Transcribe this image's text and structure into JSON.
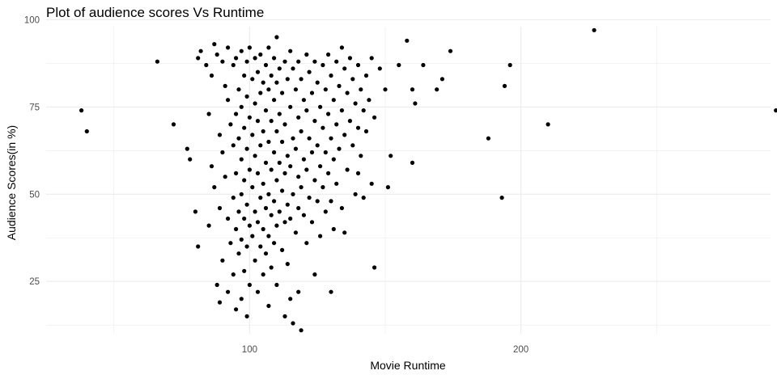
{
  "chart_data": {
    "type": "scatter",
    "title": "Plot of audience scores Vs Runtime",
    "xlabel": "Movie Runtime",
    "ylabel": "Audience Scores(in %)",
    "xlim": [
      25,
      292
    ],
    "ylim": [
      10,
      98
    ],
    "x_ticks": [
      100,
      200
    ],
    "x_tick_labels": [
      "100",
      "200"
    ],
    "y_ticks": [
      25,
      50,
      75,
      100
    ],
    "y_tick_labels": [
      "25",
      "50",
      "75",
      "100"
    ],
    "grid": true,
    "legend": "none",
    "point_color": "#000000",
    "grid_color": "#ebebeb",
    "points": [
      [
        38,
        74
      ],
      [
        40,
        68
      ],
      [
        66,
        88
      ],
      [
        72,
        70
      ],
      [
        77,
        63
      ],
      [
        78,
        60
      ],
      [
        80,
        45
      ],
      [
        81,
        89
      ],
      [
        81,
        35
      ],
      [
        82,
        91
      ],
      [
        84,
        87
      ],
      [
        85,
        73
      ],
      [
        85,
        41
      ],
      [
        86,
        84
      ],
      [
        86,
        58
      ],
      [
        87,
        93
      ],
      [
        87,
        52
      ],
      [
        88,
        90
      ],
      [
        88,
        24
      ],
      [
        89,
        67
      ],
      [
        89,
        46
      ],
      [
        89,
        19
      ],
      [
        90,
        88
      ],
      [
        90,
        62
      ],
      [
        90,
        31
      ],
      [
        91,
        81
      ],
      [
        91,
        55
      ],
      [
        92,
        92
      ],
      [
        92,
        77
      ],
      [
        92,
        43
      ],
      [
        92,
        22
      ],
      [
        93,
        70
      ],
      [
        93,
        36
      ],
      [
        94,
        87
      ],
      [
        94,
        64
      ],
      [
        94,
        49
      ],
      [
        94,
        27
      ],
      [
        95,
        89
      ],
      [
        95,
        73
      ],
      [
        95,
        56
      ],
      [
        95,
        40
      ],
      [
        95,
        17
      ],
      [
        96,
        80
      ],
      [
        96,
        66
      ],
      [
        96,
        45
      ],
      [
        96,
        33
      ],
      [
        97,
        91
      ],
      [
        97,
        75
      ],
      [
        97,
        60
      ],
      [
        97,
        50
      ],
      [
        97,
        37
      ],
      [
        97,
        20
      ],
      [
        98,
        84
      ],
      [
        98,
        69
      ],
      [
        98,
        54
      ],
      [
        98,
        43
      ],
      [
        98,
        28
      ],
      [
        99,
        88
      ],
      [
        99,
        78
      ],
      [
        99,
        63
      ],
      [
        99,
        47
      ],
      [
        99,
        35
      ],
      [
        99,
        15
      ],
      [
        100,
        92
      ],
      [
        100,
        72
      ],
      [
        100,
        57
      ],
      [
        100,
        41
      ],
      [
        100,
        24
      ],
      [
        101,
        83
      ],
      [
        101,
        67
      ],
      [
        101,
        52
      ],
      [
        101,
        38
      ],
      [
        102,
        89
      ],
      [
        102,
        76
      ],
      [
        102,
        61
      ],
      [
        102,
        45
      ],
      [
        102,
        31
      ],
      [
        103,
        85
      ],
      [
        103,
        71
      ],
      [
        103,
        56
      ],
      [
        103,
        42
      ],
      [
        103,
        22
      ],
      [
        104,
        90
      ],
      [
        104,
        79
      ],
      [
        104,
        64
      ],
      [
        104,
        49
      ],
      [
        104,
        35
      ],
      [
        105,
        82
      ],
      [
        105,
        68
      ],
      [
        105,
        53
      ],
      [
        105,
        40
      ],
      [
        105,
        27
      ],
      [
        106,
        87
      ],
      [
        106,
        74
      ],
      [
        106,
        59
      ],
      [
        106,
        46
      ],
      [
        106,
        33
      ],
      [
        107,
        92
      ],
      [
        107,
        80
      ],
      [
        107,
        65
      ],
      [
        107,
        50
      ],
      [
        107,
        38
      ],
      [
        107,
        18
      ],
      [
        108,
        84
      ],
      [
        108,
        71
      ],
      [
        108,
        57
      ],
      [
        108,
        44
      ],
      [
        108,
        29
      ],
      [
        109,
        89
      ],
      [
        109,
        77
      ],
      [
        109,
        62
      ],
      [
        109,
        48
      ],
      [
        109,
        36
      ],
      [
        110,
        95
      ],
      [
        110,
        82
      ],
      [
        110,
        68
      ],
      [
        110,
        54
      ],
      [
        110,
        41
      ],
      [
        110,
        24
      ],
      [
        111,
        86
      ],
      [
        111,
        73
      ],
      [
        111,
        59
      ],
      [
        111,
        45
      ],
      [
        112,
        79
      ],
      [
        112,
        65
      ],
      [
        112,
        51
      ],
      [
        112,
        34
      ],
      [
        113,
        88
      ],
      [
        113,
        70
      ],
      [
        113,
        56
      ],
      [
        113,
        42
      ],
      [
        113,
        15
      ],
      [
        114,
        83
      ],
      [
        114,
        61
      ],
      [
        114,
        47
      ],
      [
        114,
        30
      ],
      [
        115,
        91
      ],
      [
        115,
        75
      ],
      [
        115,
        58
      ],
      [
        115,
        43
      ],
      [
        115,
        20
      ],
      [
        116,
        86
      ],
      [
        116,
        66
      ],
      [
        116,
        50
      ],
      [
        116,
        13
      ],
      [
        117,
        80
      ],
      [
        117,
        63
      ],
      [
        117,
        39
      ],
      [
        118,
        88
      ],
      [
        118,
        72
      ],
      [
        118,
        55
      ],
      [
        118,
        46
      ],
      [
        118,
        22
      ],
      [
        119,
        83
      ],
      [
        119,
        68
      ],
      [
        119,
        52
      ],
      [
        119,
        11
      ],
      [
        120,
        77
      ],
      [
        120,
        60
      ],
      [
        120,
        44
      ],
      [
        121,
        90
      ],
      [
        121,
        74
      ],
      [
        121,
        57
      ],
      [
        121,
        36
      ],
      [
        122,
        85
      ],
      [
        122,
        66
      ],
      [
        122,
        49
      ],
      [
        123,
        79
      ],
      [
        123,
        62
      ],
      [
        123,
        42
      ],
      [
        124,
        88
      ],
      [
        124,
        71
      ],
      [
        124,
        54
      ],
      [
        124,
        27
      ],
      [
        125,
        82
      ],
      [
        125,
        64
      ],
      [
        125,
        48
      ],
      [
        126,
        75
      ],
      [
        126,
        58
      ],
      [
        126,
        38
      ],
      [
        127,
        87
      ],
      [
        127,
        69
      ],
      [
        127,
        52
      ],
      [
        128,
        80
      ],
      [
        128,
        62
      ],
      [
        128,
        45
      ],
      [
        129,
        90
      ],
      [
        129,
        73
      ],
      [
        129,
        56
      ],
      [
        130,
        84
      ],
      [
        130,
        66
      ],
      [
        130,
        48
      ],
      [
        130,
        22
      ],
      [
        131,
        77
      ],
      [
        131,
        60
      ],
      [
        131,
        40
      ],
      [
        132,
        88
      ],
      [
        132,
        70
      ],
      [
        132,
        53
      ],
      [
        133,
        81
      ],
      [
        133,
        63
      ],
      [
        134,
        92
      ],
      [
        134,
        74
      ],
      [
        134,
        46
      ],
      [
        135,
        86
      ],
      [
        135,
        67
      ],
      [
        135,
        39
      ],
      [
        136,
        79
      ],
      [
        136,
        57
      ],
      [
        137,
        89
      ],
      [
        137,
        71
      ],
      [
        138,
        83
      ],
      [
        138,
        64
      ],
      [
        139,
        76
      ],
      [
        139,
        50
      ],
      [
        140,
        87
      ],
      [
        140,
        69
      ],
      [
        140,
        56
      ],
      [
        141,
        80
      ],
      [
        141,
        61
      ],
      [
        142,
        74
      ],
      [
        142,
        49
      ],
      [
        143,
        84
      ],
      [
        143,
        68
      ],
      [
        144,
        77
      ],
      [
        145,
        89
      ],
      [
        145,
        53
      ],
      [
        146,
        72
      ],
      [
        146,
        29
      ],
      [
        148,
        86
      ],
      [
        150,
        80
      ],
      [
        151,
        52
      ],
      [
        152,
        61
      ],
      [
        155,
        87
      ],
      [
        158,
        94
      ],
      [
        160,
        80
      ],
      [
        160,
        59
      ],
      [
        161,
        76
      ],
      [
        164,
        87
      ],
      [
        169,
        80
      ],
      [
        171,
        83
      ],
      [
        174,
        91
      ],
      [
        188,
        66
      ],
      [
        193,
        49
      ],
      [
        194,
        81
      ],
      [
        196,
        87
      ],
      [
        210,
        70
      ],
      [
        227,
        97
      ],
      [
        294,
        74
      ]
    ]
  }
}
